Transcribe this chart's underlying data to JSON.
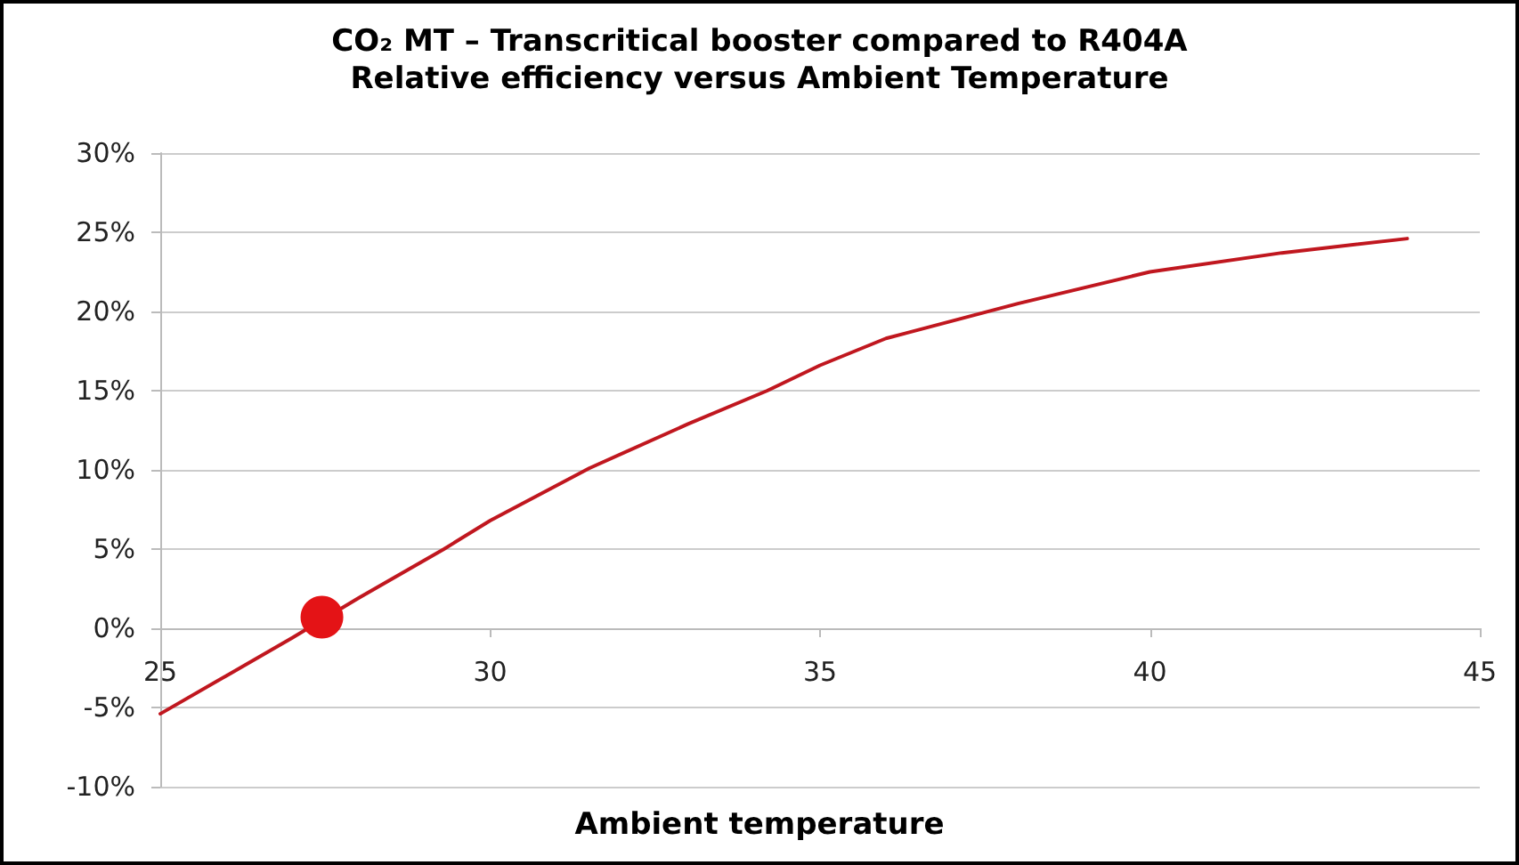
{
  "chart_data": {
    "type": "line",
    "title": "CO₂ MT – Transcritical booster compared to R404A",
    "subtitle": "Relative efficiency versus Ambient Temperature",
    "xlabel": "Ambient temperature",
    "xlim": [
      25,
      45
    ],
    "xticks": [
      25,
      30,
      35,
      40,
      45
    ],
    "ylim": [
      -10,
      30
    ],
    "yticks": [
      {
        "value": -10,
        "label": "-10%"
      },
      {
        "value": -5,
        "label": "-5%"
      },
      {
        "value": 0,
        "label": "0%"
      },
      {
        "value": 5,
        "label": "5%"
      },
      {
        "value": 10,
        "label": "10%"
      },
      {
        "value": 15,
        "label": "15%"
      },
      {
        "value": 20,
        "label": "20%"
      },
      {
        "value": 25,
        "label": "25%"
      },
      {
        "value": 30,
        "label": "30%"
      }
    ],
    "grid": "y",
    "marker": "none",
    "line_style": "solid",
    "series": [
      {
        "type": "line",
        "color": "#c0171f",
        "x": [
          25,
          26,
          27,
          28,
          29.3,
          30,
          31.5,
          33,
          34.2,
          35,
          36,
          38,
          40,
          42,
          43.9
        ],
        "values": [
          -5.4,
          -3,
          -0.6,
          1.9,
          5,
          6.8,
          10.1,
          12.9,
          15,
          16.6,
          18.3,
          20.5,
          22.5,
          23.7,
          24.6
        ]
      },
      {
        "type": "scatter",
        "color": "#e41316",
        "marker": "circle",
        "x": [
          27.45
        ],
        "values": [
          0.7
        ]
      }
    ]
  }
}
